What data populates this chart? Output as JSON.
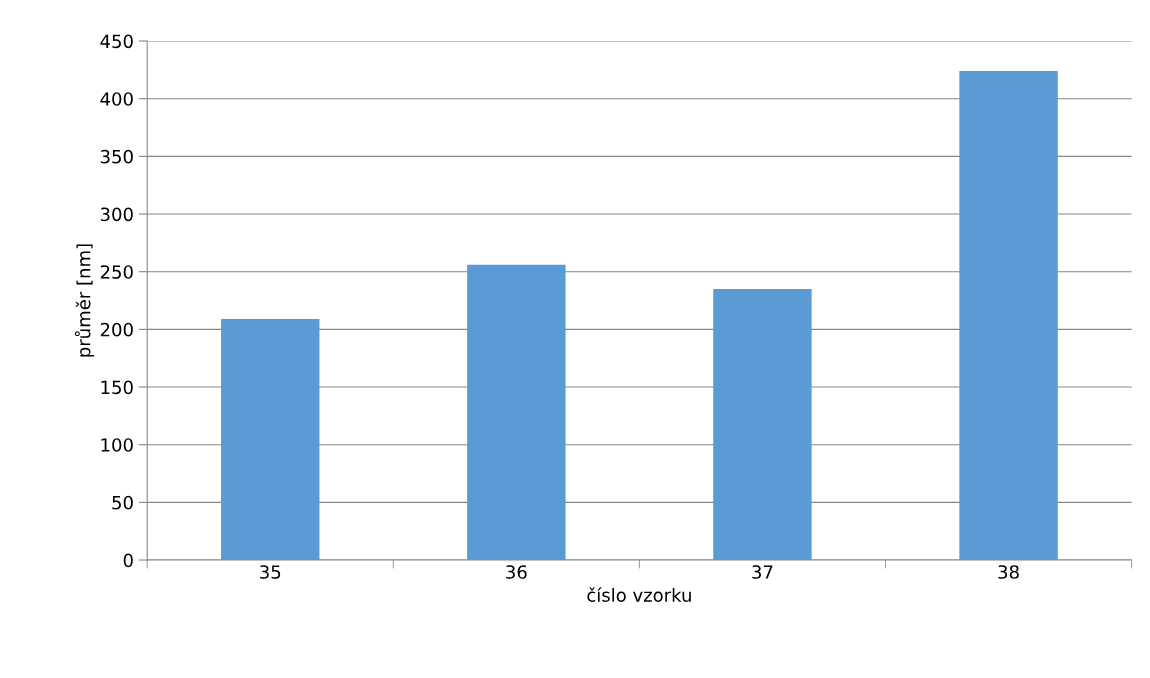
{
  "chart_data": {
    "type": "bar",
    "xlabel": "číslo vzorku",
    "ylabel": "průměr [nm]",
    "categories": [
      "35",
      "36",
      "37",
      "38"
    ],
    "values": [
      209,
      256,
      235,
      424
    ],
    "color": "#5b9bd5",
    "ylim": [
      0,
      450
    ],
    "yticks": [
      0,
      50,
      100,
      150,
      200,
      250,
      300,
      350,
      400,
      450
    ],
    "grid": "y"
  }
}
